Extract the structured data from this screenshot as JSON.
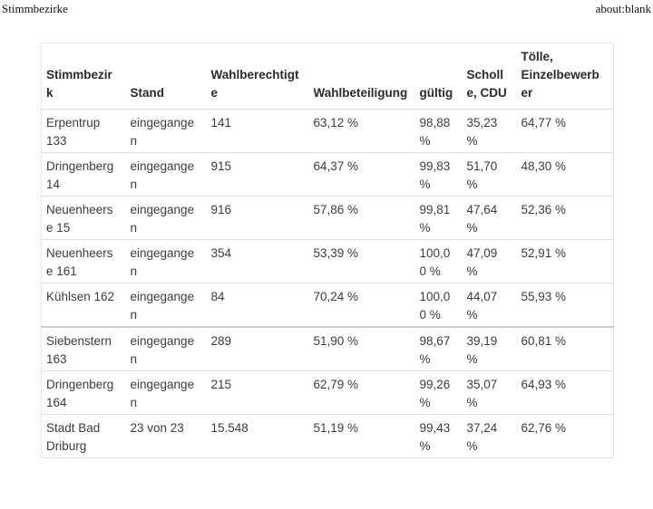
{
  "page": {
    "title_left": "Stimmbezirke",
    "title_right": "about:blank"
  },
  "colors": {
    "text": "#3c3c3c",
    "header_text": "#2b2b2b",
    "row_border": "#e0e0e0",
    "thick_border": "#cbcbcb",
    "background": "#ffffff"
  },
  "table": {
    "columns": [
      "Stimmbezirk",
      "Stand",
      "Wahlberechtigte",
      "Wahlbeteiligung",
      "gültig",
      "Scholle, CDU",
      "Tölle, Einzelbewerber"
    ],
    "rows": [
      {
        "cells": [
          "Erpentrup 133",
          "eingegangen",
          "141",
          "63,12 %",
          "98,88 %",
          "35,23 %",
          "64,77 %"
        ]
      },
      {
        "cells": [
          "Dringenberg 14",
          "eingegangen",
          "915",
          "64,37 %",
          "99,83 %",
          "51,70 %",
          "48,30 %"
        ]
      },
      {
        "cells": [
          "Neuenheerse 15",
          "eingegangen",
          "916",
          "57,86 %",
          "99,81 %",
          "47,64 %",
          "52,36 %"
        ]
      },
      {
        "cells": [
          "Neuenheerse 161",
          "eingegangen",
          "354",
          "53,39 %",
          "100,00 %",
          "47,09 %",
          "52,91 %"
        ]
      },
      {
        "cells": [
          "Kühlsen 162",
          "eingegangen",
          "84",
          "70,24 %",
          "100,00 %",
          "44,07 %",
          "55,93 %"
        ]
      },
      {
        "cells": [
          "Siebenstern 163",
          "eingegangen",
          "289",
          "51,90 %",
          "98,67 %",
          "39,19 %",
          "60,81 %"
        ]
      },
      {
        "cells": [
          "Dringenberg 164",
          "eingegangen",
          "215",
          "62,79 %",
          "99,26 %",
          "35,07 %",
          "64,93 %"
        ]
      },
      {
        "cells": [
          "Stadt Bad Driburg",
          "23 von 23",
          "15.548",
          "51,19 %",
          "99,43 %",
          "37,24 %",
          "62,76 %"
        ]
      }
    ],
    "thick_divider_after_row_index": 4
  }
}
